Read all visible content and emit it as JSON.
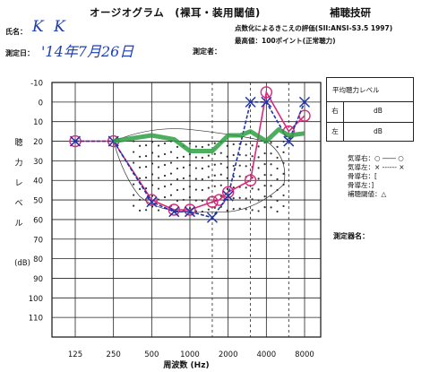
{
  "header": {
    "title": "オージオグラム　(裸耳・装用閾値)",
    "company": "補聴技研",
    "sii_note": "点数化によるきこえの評価(SII:ANSI-S3.5 1997)",
    "max_value": "最高値：100ポイント(正常聴力)"
  },
  "fields": {
    "name_label": "氏名：",
    "name_value": "K K",
    "date_label": "測定日：",
    "date_value": "'14年7月26日",
    "measurer_label": "測定者："
  },
  "chart_data": {
    "type": "line",
    "y_label_chars": [
      "聴",
      "力",
      "レ",
      "ベ",
      "ル"
    ],
    "y_unit": "(dB)",
    "x_label": "周波数 (Hz)",
    "x_ticks": [
      "125",
      "250",
      "500",
      "1000",
      "2000",
      "4000",
      "8000"
    ],
    "x_values": [
      125,
      250,
      500,
      1000,
      2000,
      4000,
      8000
    ],
    "y_ticks": [
      "-10",
      "0",
      "10",
      "20",
      "30",
      "40",
      "50",
      "60",
      "70",
      "80",
      "90",
      "100",
      "110"
    ],
    "ylim": [
      -10,
      120
    ],
    "reversed_y": true,
    "series": [
      {
        "key": "right",
        "color": "#d8297a",
        "marker": "circle",
        "points": [
          [
            125,
            20
          ],
          [
            250,
            20
          ],
          [
            500,
            50
          ],
          [
            750,
            55
          ],
          [
            1000,
            55
          ],
          [
            1500,
            51
          ],
          [
            1700,
            50
          ],
          [
            2000,
            46
          ],
          [
            3000,
            40
          ],
          [
            4000,
            -5
          ],
          [
            6000,
            15
          ],
          [
            8000,
            7
          ]
        ]
      },
      {
        "key": "left",
        "color": "#1f34a8",
        "marker": "x",
        "points": [
          [
            125,
            20
          ],
          [
            250,
            20
          ],
          [
            500,
            51
          ],
          [
            750,
            56
          ],
          [
            1000,
            56
          ],
          [
            1500,
            59
          ],
          [
            2000,
            48
          ],
          [
            3000,
            0
          ],
          [
            4000,
            0
          ],
          [
            6000,
            20
          ],
          [
            8000,
            0
          ]
        ]
      },
      {
        "key": "speech-banana-upper",
        "color": "#2fa043",
        "marker": "none",
        "points": [
          [
            250,
            20
          ],
          [
            500,
            17
          ],
          [
            750,
            19
          ],
          [
            1000,
            25
          ],
          [
            1500,
            25
          ],
          [
            2000,
            17
          ],
          [
            2500,
            17
          ],
          [
            3000,
            15
          ],
          [
            4000,
            20
          ],
          [
            5000,
            14
          ],
          [
            6000,
            17
          ],
          [
            8000,
            16
          ]
        ]
      }
    ]
  },
  "table": {
    "title": "平均聴力レベル",
    "rows": [
      {
        "side": "右",
        "unit": "dB"
      },
      {
        "side": "左",
        "unit": "dB"
      }
    ]
  },
  "legend": [
    "気導右：○ ―― ○",
    "気導左：× ------ ×",
    "骨導右：[",
    "骨導左：]",
    "補聴閾値：△"
  ],
  "device_label": "測定器名："
}
